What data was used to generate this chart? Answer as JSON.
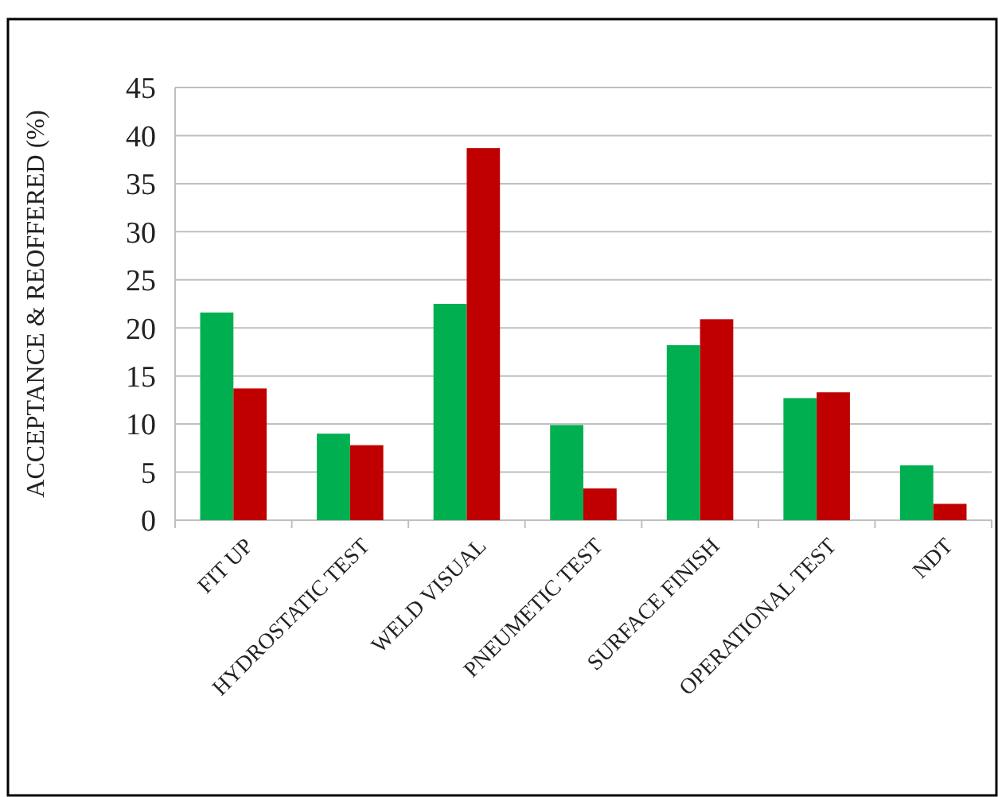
{
  "chart_data": {
    "type": "bar",
    "ylabel": "ACCEPTANCE & REOFFERED (%)",
    "categories": [
      "FIT UP",
      "HYDROSTATIC TEST",
      "WELD VISUAL",
      "PNEUMETIC TEST",
      "SURFACE FINISH",
      "OPERATIONAL TEST",
      "NDT"
    ],
    "series": [
      {
        "color": "#00b050",
        "values": [
          21.6,
          9.0,
          22.5,
          9.9,
          18.2,
          12.7,
          5.7
        ]
      },
      {
        "color": "#c00000",
        "values": [
          13.7,
          7.8,
          38.7,
          3.3,
          20.9,
          13.3,
          1.7
        ]
      }
    ],
    "ylim": [
      0,
      45
    ],
    "yticks": [
      0,
      5,
      10,
      15,
      20,
      25,
      30,
      35,
      40,
      45
    ],
    "grid": "y"
  }
}
